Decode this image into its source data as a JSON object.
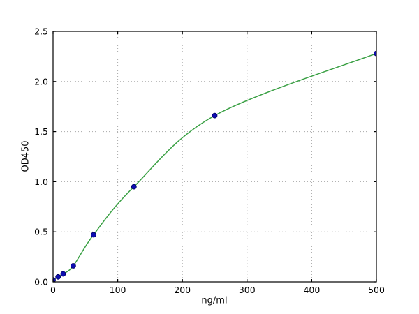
{
  "figure": {
    "background": "#ffffff",
    "title": ""
  },
  "chart_data": {
    "type": "scatter",
    "title": "",
    "xlabel": "ng/ml",
    "ylabel": "OD450",
    "xlim": [
      0,
      500
    ],
    "ylim": [
      0,
      2.5
    ],
    "xticks": [
      0,
      100,
      200,
      300,
      400,
      500
    ],
    "xtick_labels": [
      "0",
      "100",
      "200",
      "300",
      "400",
      "500"
    ],
    "yticks": [
      0,
      0.5,
      1.0,
      1.5,
      2.0,
      2.5
    ],
    "ytick_labels": [
      "0.0",
      "0.5",
      "1.0",
      "1.5",
      "2.0",
      "2.5"
    ],
    "grid": "dotted",
    "legend": "none",
    "series": [
      {
        "name": "fit-curve",
        "kind": "smooth-line",
        "color": "#3aa044",
        "x": [
          0,
          7.8,
          15.6,
          31.25,
          62.5,
          125,
          250,
          500
        ],
        "y": [
          0.02,
          0.05,
          0.08,
          0.16,
          0.47,
          0.95,
          1.66,
          2.28
        ]
      },
      {
        "name": "standard-points",
        "kind": "points",
        "color": "#0d0db0",
        "edge_color": "#000060",
        "x": [
          0,
          7.8,
          15.6,
          31.25,
          62.5,
          125,
          250,
          500
        ],
        "y": [
          0.02,
          0.05,
          0.08,
          0.16,
          0.47,
          0.95,
          1.66,
          2.28
        ]
      }
    ],
    "colors": {
      "axis": "#000000",
      "grid": "#a8a8a8",
      "background": "#ffffff"
    }
  }
}
